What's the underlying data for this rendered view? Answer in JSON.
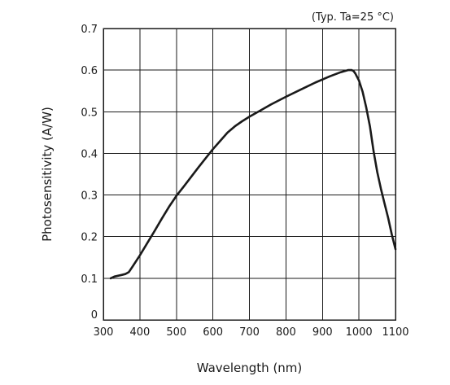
{
  "chart_data": {
    "type": "line",
    "annotation": "(Typ. Ta=25 °C)",
    "xlabel": "Wavelength (nm)",
    "ylabel": "Photosensitivity (A/W)",
    "xlim": [
      300,
      1100
    ],
    "ylim": [
      0,
      0.7
    ],
    "grid": true,
    "xticks": [
      {
        "value": 300,
        "label": "300"
      },
      {
        "value": 400,
        "label": "400"
      },
      {
        "value": 500,
        "label": "500"
      },
      {
        "value": 600,
        "label": "600"
      },
      {
        "value": 700,
        "label": "700"
      },
      {
        "value": 800,
        "label": "800"
      },
      {
        "value": 900,
        "label": "900"
      },
      {
        "value": 1000,
        "label": "1000"
      },
      {
        "value": 1100,
        "label": "1100"
      }
    ],
    "yticks": [
      {
        "value": 0,
        "label": "0"
      },
      {
        "value": 0.1,
        "label": "0.1"
      },
      {
        "value": 0.2,
        "label": "0.2"
      },
      {
        "value": 0.3,
        "label": "0.3"
      },
      {
        "value": 0.4,
        "label": "0.4"
      },
      {
        "value": 0.5,
        "label": "0.5"
      },
      {
        "value": 0.6,
        "label": "0.6"
      },
      {
        "value": 0.7,
        "label": "0.7"
      }
    ],
    "series": [
      {
        "x": [
          320,
          330,
          340,
          350,
          360,
          370,
          380,
          400,
          420,
          440,
          460,
          480,
          500,
          520,
          540,
          560,
          580,
          600,
          620,
          640,
          660,
          680,
          700,
          730,
          760,
          800,
          840,
          880,
          920,
          950,
          970,
          980,
          985,
          990,
          1000,
          1010,
          1020,
          1030,
          1040,
          1050,
          1060,
          1070,
          1080,
          1090,
          1100
        ],
        "y": [
          0.1,
          0.104,
          0.106,
          0.108,
          0.11,
          0.115,
          0.128,
          0.155,
          0.184,
          0.213,
          0.243,
          0.272,
          0.298,
          0.32,
          0.343,
          0.366,
          0.388,
          0.41,
          0.43,
          0.45,
          0.465,
          0.477,
          0.488,
          0.503,
          0.518,
          0.536,
          0.553,
          0.57,
          0.585,
          0.595,
          0.6,
          0.6,
          0.598,
          0.592,
          0.575,
          0.548,
          0.51,
          0.465,
          0.405,
          0.355,
          0.315,
          0.28,
          0.245,
          0.205,
          0.17
        ]
      }
    ]
  }
}
